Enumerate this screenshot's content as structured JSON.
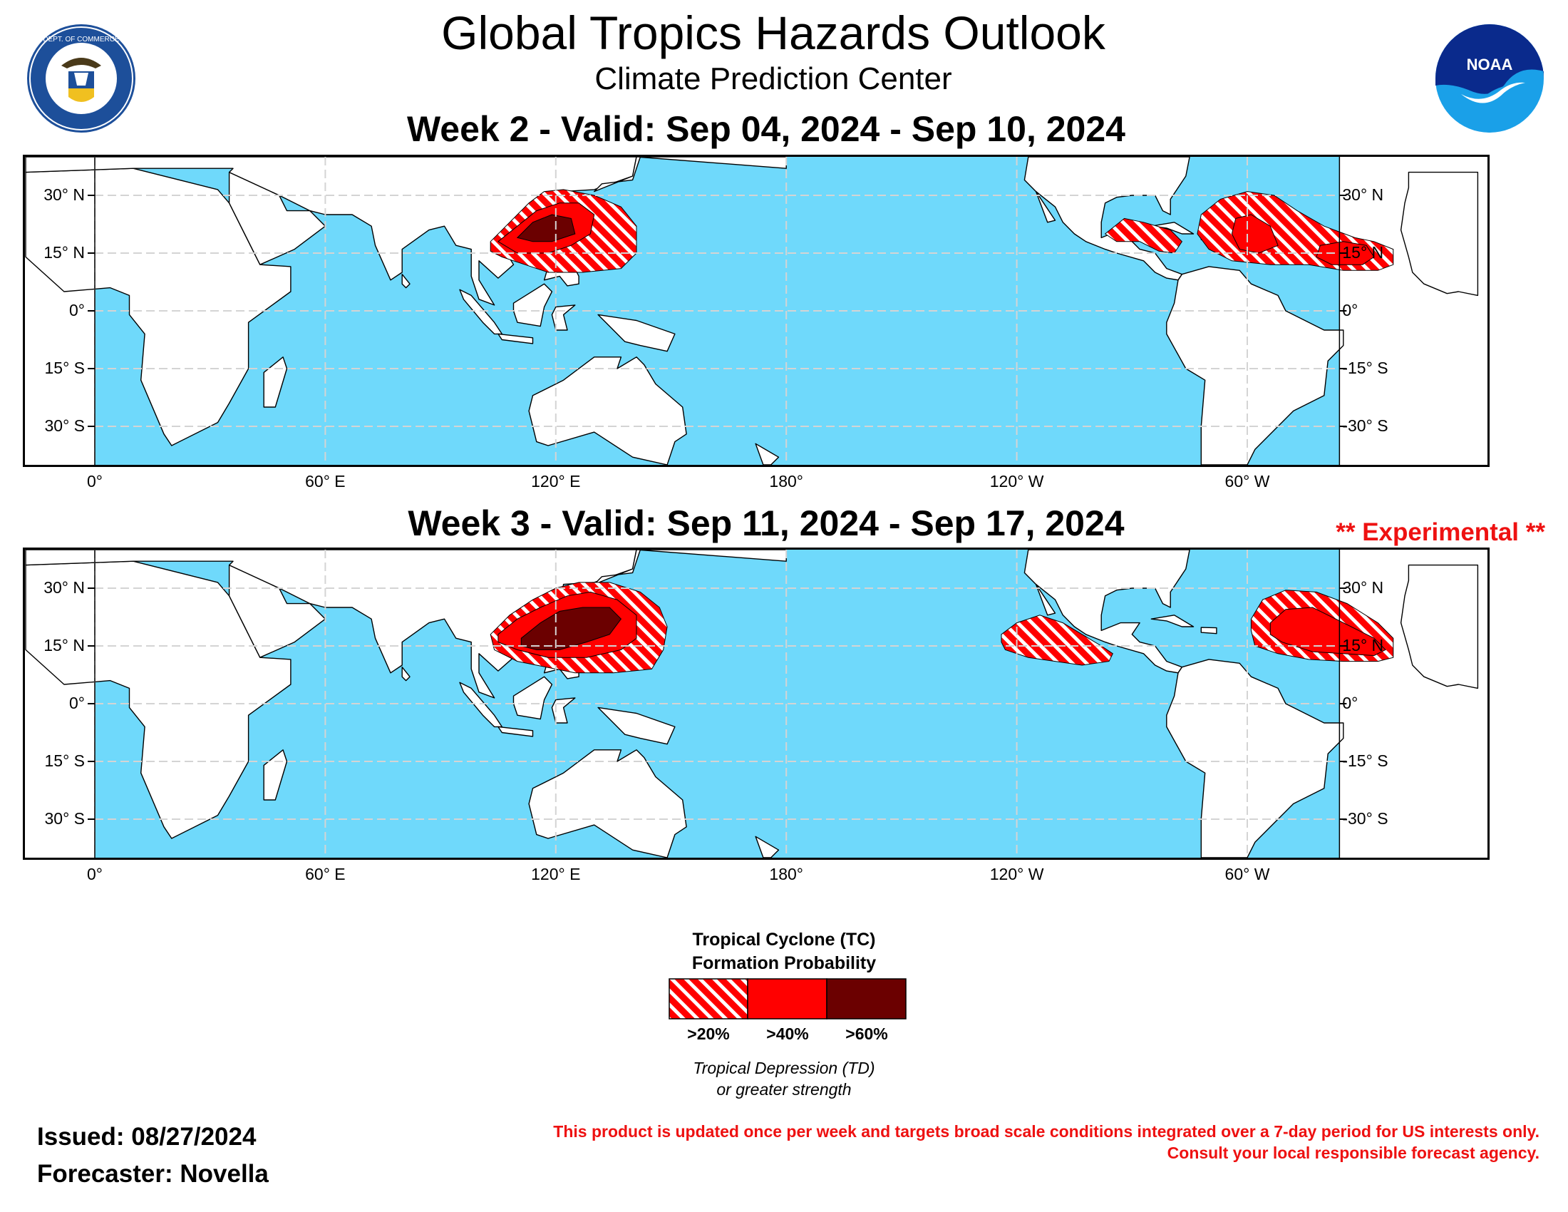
{
  "header": {
    "title": "Global Tropics Hazards Outlook",
    "subtitle": "Climate Prediction Center",
    "seal_text": "DEPARTMENT OF COMMERCE · UNITED STATES OF AMERICA",
    "noaa_text": "NOAA"
  },
  "week2": {
    "title": "Week 2 - Valid: Sep 04, 2024 - Sep 10, 2024"
  },
  "week3": {
    "title": "Week 3 - Valid: Sep 11, 2024 - Sep 17, 2024",
    "tag": "** Experimental **"
  },
  "axes": {
    "x_ticks": [
      {
        "lon": 0,
        "label": "0°"
      },
      {
        "lon": 60,
        "label": "60° E"
      },
      {
        "lon": 120,
        "label": "120° E"
      },
      {
        "lon": 180,
        "label": "180°"
      },
      {
        "lon": 240,
        "label": "120° W"
      },
      {
        "lon": 300,
        "label": "60° W"
      }
    ],
    "y_ticks_left": [
      {
        "lat": 30,
        "label": "30° N"
      },
      {
        "lat": 15,
        "label": "15° N"
      },
      {
        "lat": 0,
        "label": "0°"
      },
      {
        "lat": -15,
        "label": "15° S"
      },
      {
        "lat": -30,
        "label": "30° S"
      }
    ],
    "y_ticks_right": [
      {
        "lat": 30,
        "label": "30° N"
      },
      {
        "lat": 15,
        "label": "15° N"
      },
      {
        "lat": 0,
        "label": "0°"
      },
      {
        "lat": -15,
        "label": "-15° S"
      },
      {
        "lat": -30,
        "label": "-30° S"
      }
    ]
  },
  "map": {
    "lon_range": [
      -18,
      342
    ],
    "lat_range": [
      -40,
      40
    ],
    "ocean_color": "#6fd9fb",
    "land_color": "#ffffff",
    "grid_color": "#d4d4d4"
  },
  "hazards": {
    "colors": {
      "gt20": "#ff0000",
      "gt40": "#ff0000",
      "gt60": "#6b0000",
      "stripe": "#ffffff"
    },
    "week2": [
      {
        "category": "gt20",
        "polygon": [
          [
            103,
            18
          ],
          [
            108,
            23
          ],
          [
            113,
            28
          ],
          [
            117,
            31
          ],
          [
            122,
            31.5
          ],
          [
            130,
            30
          ],
          [
            137,
            27
          ],
          [
            141,
            22
          ],
          [
            141,
            15
          ],
          [
            137,
            11
          ],
          [
            127,
            10
          ],
          [
            118,
            10
          ],
          [
            112,
            12
          ],
          [
            106,
            14
          ],
          [
            103,
            15.5
          ]
        ]
      },
      {
        "category": "gt40",
        "polygon": [
          [
            105,
            18
          ],
          [
            110,
            22
          ],
          [
            115,
            26
          ],
          [
            121,
            28
          ],
          [
            126,
            28
          ],
          [
            130,
            25
          ],
          [
            129,
            20
          ],
          [
            124,
            17
          ],
          [
            118,
            15
          ],
          [
            110,
            15
          ]
        ]
      },
      {
        "category": "gt60",
        "polygon": [
          [
            110,
            19
          ],
          [
            114,
            23
          ],
          [
            119,
            25
          ],
          [
            124,
            24
          ],
          [
            125,
            20
          ],
          [
            119,
            18
          ],
          [
            114,
            18
          ]
        ]
      },
      {
        "category": "gt20",
        "polygon": [
          [
            263,
            20
          ],
          [
            268,
            24
          ],
          [
            273,
            23
          ],
          [
            280,
            21
          ],
          [
            283,
            18
          ],
          [
            281,
            15
          ],
          [
            277,
            15.5
          ],
          [
            272,
            18
          ],
          [
            266,
            18
          ]
        ]
      },
      {
        "category": "gt20",
        "polygon": [
          [
            288,
            25
          ],
          [
            293,
            29
          ],
          [
            300,
            31
          ],
          [
            307,
            30
          ],
          [
            313,
            26
          ],
          [
            320,
            22
          ],
          [
            328,
            19
          ],
          [
            333,
            18
          ],
          [
            338,
            16
          ],
          [
            338,
            12
          ],
          [
            334,
            10.5
          ],
          [
            325,
            10.5
          ],
          [
            316,
            12
          ],
          [
            306,
            12
          ],
          [
            296,
            13
          ],
          [
            290,
            16
          ],
          [
            287,
            20
          ]
        ]
      },
      {
        "category": "gt40",
        "polygon": [
          [
            297,
            24
          ],
          [
            301,
            25
          ],
          [
            306,
            22
          ],
          [
            308,
            17
          ],
          [
            303,
            15
          ],
          [
            298,
            16
          ],
          [
            296,
            20
          ]
        ]
      },
      {
        "category": "gt40",
        "polygon": [
          [
            319,
            17
          ],
          [
            325,
            18
          ],
          [
            331,
            17
          ],
          [
            333,
            14
          ],
          [
            330,
            12
          ],
          [
            322,
            12
          ],
          [
            318,
            14
          ]
        ]
      }
    ],
    "week3": [
      {
        "category": "gt20",
        "polygon": [
          [
            103,
            18
          ],
          [
            108,
            23
          ],
          [
            114,
            27
          ],
          [
            120,
            30
          ],
          [
            126,
            31.5
          ],
          [
            134,
            31.5
          ],
          [
            142,
            29
          ],
          [
            147,
            25
          ],
          [
            149,
            20
          ],
          [
            148,
            14
          ],
          [
            145,
            9
          ],
          [
            135,
            8
          ],
          [
            125,
            8
          ],
          [
            115,
            10
          ],
          [
            110,
            11
          ],
          [
            104,
            14
          ]
        ]
      },
      {
        "category": "gt40",
        "polygon": [
          [
            105,
            18
          ],
          [
            110,
            22
          ],
          [
            116,
            25
          ],
          [
            123,
            28
          ],
          [
            129,
            29
          ],
          [
            136,
            27
          ],
          [
            141,
            23
          ],
          [
            141,
            17
          ],
          [
            137,
            14
          ],
          [
            128,
            12
          ],
          [
            118,
            12
          ],
          [
            110,
            14
          ],
          [
            105,
            16
          ]
        ]
      },
      {
        "category": "gt60",
        "polygon": [
          [
            111,
            17
          ],
          [
            116,
            21
          ],
          [
            121,
            24
          ],
          [
            127,
            25
          ],
          [
            134,
            25
          ],
          [
            137,
            22
          ],
          [
            134,
            18
          ],
          [
            128,
            16
          ],
          [
            121,
            14
          ],
          [
            115,
            14
          ],
          [
            111,
            15
          ]
        ]
      },
      {
        "category": "gt20",
        "polygon": [
          [
            236,
            18
          ],
          [
            240,
            21
          ],
          [
            246,
            23
          ],
          [
            252,
            21
          ],
          [
            257,
            18
          ],
          [
            262,
            15
          ],
          [
            265,
            13
          ],
          [
            264,
            11
          ],
          [
            257,
            10
          ],
          [
            250,
            11
          ],
          [
            243,
            12
          ],
          [
            237,
            14
          ],
          [
            236,
            16
          ]
        ]
      },
      {
        "category": "gt20",
        "polygon": [
          [
            301,
            22
          ],
          [
            304,
            27
          ],
          [
            310,
            29.5
          ],
          [
            318,
            29
          ],
          [
            326,
            26
          ],
          [
            334,
            21
          ],
          [
            338,
            17
          ],
          [
            338,
            12
          ],
          [
            334,
            11
          ],
          [
            325,
            11
          ],
          [
            316,
            11.5
          ],
          [
            308,
            13
          ],
          [
            302,
            15
          ],
          [
            301,
            19
          ]
        ]
      },
      {
        "category": "gt40",
        "polygon": [
          [
            306,
            21
          ],
          [
            310,
            24.5
          ],
          [
            317,
            25
          ],
          [
            325,
            21
          ],
          [
            333,
            17
          ],
          [
            336,
            14
          ],
          [
            333,
            12.5
          ],
          [
            325,
            13
          ],
          [
            317,
            13.5
          ],
          [
            309,
            16
          ],
          [
            306,
            18
          ]
        ]
      }
    ]
  },
  "legend": {
    "title": [
      "Tropical Cyclone (TC)",
      "Formation Probability"
    ],
    "items": [
      {
        "key": "gt20",
        "label": ">20%"
      },
      {
        "key": "gt40",
        "label": ">40%"
      },
      {
        "key": "gt60",
        "label": ">60%"
      }
    ],
    "note": [
      "Tropical Depression (TD)",
      "or greater strength"
    ]
  },
  "footer": {
    "issued": "Issued: 08/27/2024",
    "forecaster": "Forecaster: Novella",
    "disclaimer_line1": "This product is updated once per week and targets broad scale conditions integrated over a 7-day period for US interests only.",
    "disclaimer_line2": "Consult your local responsible forecast agency."
  }
}
